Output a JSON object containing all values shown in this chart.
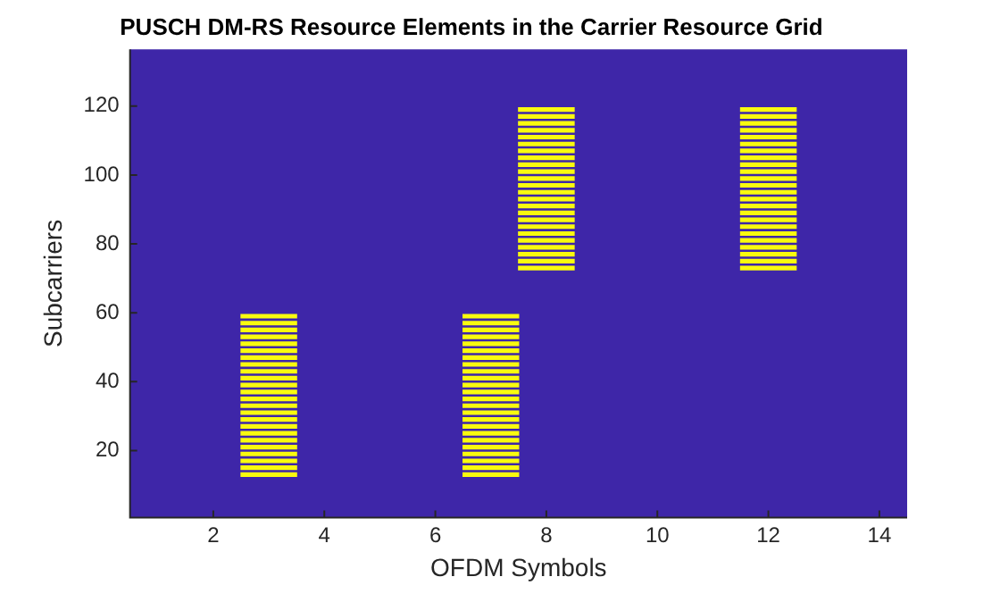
{
  "chart_data": {
    "type": "bar",
    "orientation": "horizontal",
    "title": "PUSCH DM-RS Resource Elements in the Carrier Resource Grid",
    "xlabel": "OFDM Symbols",
    "ylabel": "Subcarriers",
    "grid": false,
    "legend": false,
    "xlim": [
      0.5,
      14.5
    ],
    "xticks": [
      2,
      4,
      6,
      8,
      10,
      12,
      14
    ],
    "categories": [
      null,
      null,
      null,
      null,
      null,
      null,
      null,
      null,
      null,
      null,
      null,
      null,
      null,
      null,
      null,
      null,
      "120",
      null,
      null,
      null,
      null,
      null,
      null,
      null,
      null,
      null,
      null,
      null,
      null,
      null,
      null,
      null,
      null,
      null,
      null,
      null,
      "100",
      null,
      null,
      null,
      null,
      null,
      null,
      null,
      null,
      null,
      null,
      null,
      null,
      null,
      null,
      null,
      null,
      null,
      null,
      null,
      "80",
      null,
      null,
      null,
      null,
      null,
      null,
      null,
      null,
      null,
      null,
      null,
      null,
      null,
      null,
      null,
      null,
      null,
      null,
      null,
      "60",
      null,
      null,
      null,
      null,
      null,
      null,
      null,
      null,
      null,
      null,
      null,
      null,
      null,
      null,
      null,
      null,
      null,
      null,
      null,
      "40",
      null,
      null,
      null,
      null,
      null,
      null,
      null,
      null,
      null,
      null,
      null,
      null,
      null,
      null,
      null,
      null,
      null,
      null,
      null,
      "20",
      null,
      null,
      null,
      null,
      null,
      null,
      null,
      null,
      null,
      null,
      null,
      null,
      null,
      null,
      null,
      null,
      null,
      null,
      null
    ],
    "bands": [
      {
        "axis": "x",
        "from": 0.5,
        "to": 14.5,
        "color": "#3e26a8"
      }
    ],
    "series": [
      {
        "color": "#f9fb0e",
        "values": [
          null,
          null,
          null,
          null,
          null,
          null,
          null,
          null,
          null,
          null,
          null,
          null,
          null,
          null,
          null,
          null,
          null,
          null,
          null,
          null,
          null,
          null,
          null,
          null,
          null,
          null,
          null,
          null,
          null,
          null,
          null,
          null,
          null,
          null,
          null,
          null,
          null,
          null,
          null,
          null,
          null,
          null,
          null,
          null,
          null,
          null,
          null,
          null,
          null,
          null,
          null,
          null,
          null,
          null,
          null,
          null,
          null,
          null,
          null,
          null,
          null,
          null,
          null,
          null,
          null,
          null,
          null,
          null,
          null,
          null,
          null,
          null,
          null,
          null,
          null,
          null,
          null,
          1,
          null,
          1,
          null,
          1,
          null,
          1,
          null,
          1,
          null,
          1,
          null,
          1,
          null,
          1,
          null,
          1,
          null,
          1,
          null,
          1,
          null,
          1,
          null,
          1,
          null,
          1,
          null,
          1,
          null,
          1,
          null,
          1,
          null,
          1,
          null,
          1,
          null,
          1,
          null,
          1,
          null,
          1,
          null,
          1,
          null,
          1,
          null,
          null,
          null,
          null,
          null,
          null,
          null,
          null,
          null,
          null,
          null,
          null
        ],
        "base": [
          null,
          null,
          null,
          null,
          null,
          null,
          null,
          null,
          null,
          null,
          null,
          null,
          null,
          null,
          null,
          null,
          null,
          null,
          null,
          null,
          null,
          null,
          null,
          null,
          null,
          null,
          null,
          null,
          null,
          null,
          null,
          null,
          null,
          null,
          null,
          null,
          null,
          null,
          null,
          null,
          null,
          null,
          null,
          null,
          null,
          null,
          null,
          null,
          null,
          null,
          null,
          null,
          null,
          null,
          null,
          null,
          null,
          null,
          null,
          null,
          null,
          null,
          null,
          null,
          null,
          null,
          null,
          null,
          null,
          null,
          null,
          null,
          null,
          null,
          null,
          null,
          null,
          2.5,
          null,
          2.5,
          null,
          2.5,
          null,
          2.5,
          null,
          2.5,
          null,
          2.5,
          null,
          2.5,
          null,
          2.5,
          null,
          2.5,
          null,
          2.5,
          null,
          2.5,
          null,
          2.5,
          null,
          2.5,
          null,
          2.5,
          null,
          2.5,
          null,
          2.5,
          null,
          2.5,
          null,
          2.5,
          null,
          2.5,
          null,
          2.5,
          null,
          2.5,
          null,
          2.5,
          null,
          2.5,
          null,
          2.5,
          null,
          null,
          null,
          null,
          null,
          null,
          null,
          null,
          null,
          null,
          null,
          null
        ]
      },
      {
        "color": "#f9fb0e",
        "values": [
          null,
          null,
          null,
          null,
          null,
          null,
          null,
          null,
          null,
          null,
          null,
          null,
          null,
          null,
          null,
          null,
          null,
          null,
          null,
          null,
          null,
          null,
          null,
          null,
          null,
          null,
          null,
          null,
          null,
          null,
          null,
          null,
          null,
          null,
          null,
          null,
          null,
          null,
          null,
          null,
          null,
          null,
          null,
          null,
          null,
          null,
          null,
          null,
          null,
          null,
          null,
          null,
          null,
          null,
          null,
          null,
          null,
          null,
          null,
          null,
          null,
          null,
          null,
          null,
          null,
          null,
          null,
          null,
          null,
          null,
          null,
          null,
          null,
          null,
          null,
          null,
          null,
          1,
          null,
          1,
          null,
          1,
          null,
          1,
          null,
          1,
          null,
          1,
          null,
          1,
          null,
          1,
          null,
          1,
          null,
          1,
          null,
          1,
          null,
          1,
          null,
          1,
          null,
          1,
          null,
          1,
          null,
          1,
          null,
          1,
          null,
          1,
          null,
          1,
          null,
          1,
          null,
          1,
          null,
          1,
          null,
          1,
          null,
          1,
          null,
          null,
          null,
          null,
          null,
          null,
          null,
          null,
          null,
          null,
          null,
          null
        ],
        "base": [
          null,
          null,
          null,
          null,
          null,
          null,
          null,
          null,
          null,
          null,
          null,
          null,
          null,
          null,
          null,
          null,
          null,
          null,
          null,
          null,
          null,
          null,
          null,
          null,
          null,
          null,
          null,
          null,
          null,
          null,
          null,
          null,
          null,
          null,
          null,
          null,
          null,
          null,
          null,
          null,
          null,
          null,
          null,
          null,
          null,
          null,
          null,
          null,
          null,
          null,
          null,
          null,
          null,
          null,
          null,
          null,
          null,
          null,
          null,
          null,
          null,
          null,
          null,
          null,
          null,
          null,
          null,
          null,
          null,
          null,
          null,
          null,
          null,
          null,
          null,
          null,
          null,
          6.5,
          null,
          6.5,
          null,
          6.5,
          null,
          6.5,
          null,
          6.5,
          null,
          6.5,
          null,
          6.5,
          null,
          6.5,
          null,
          6.5,
          null,
          6.5,
          null,
          6.5,
          null,
          6.5,
          null,
          6.5,
          null,
          6.5,
          null,
          6.5,
          null,
          6.5,
          null,
          6.5,
          null,
          6.5,
          null,
          6.5,
          null,
          6.5,
          null,
          6.5,
          null,
          6.5,
          null,
          6.5,
          null,
          6.5,
          null,
          null,
          null,
          null,
          null,
          null,
          null,
          null,
          null,
          null,
          null,
          null
        ]
      },
      {
        "color": "#f9fb0e",
        "values": [
          null,
          null,
          null,
          null,
          null,
          null,
          null,
          null,
          null,
          null,
          null,
          null,
          null,
          null,
          null,
          null,
          null,
          1,
          null,
          1,
          null,
          1,
          null,
          1,
          null,
          1,
          null,
          1,
          null,
          1,
          null,
          1,
          null,
          1,
          null,
          1,
          null,
          1,
          null,
          1,
          null,
          1,
          null,
          1,
          null,
          1,
          null,
          1,
          null,
          1,
          null,
          1,
          null,
          1,
          null,
          1,
          null,
          1,
          null,
          1,
          null,
          1,
          null,
          1,
          null,
          null,
          null,
          null,
          null,
          null,
          null,
          null,
          null,
          null,
          null,
          null,
          null,
          null,
          null,
          null,
          null,
          null,
          null,
          null,
          null,
          null,
          null,
          null,
          null,
          null,
          null,
          null,
          null,
          null,
          null,
          null,
          null,
          null,
          null,
          null,
          null,
          null,
          null,
          null,
          null,
          null,
          null,
          null,
          null,
          null,
          null,
          null,
          null,
          null,
          null,
          null,
          null,
          null,
          null,
          null,
          null,
          null,
          null,
          null,
          null,
          null,
          null,
          null,
          null,
          null,
          null,
          null,
          null,
          null,
          null,
          null
        ],
        "base": [
          null,
          null,
          null,
          null,
          null,
          null,
          null,
          null,
          null,
          null,
          null,
          null,
          null,
          null,
          null,
          null,
          null,
          7.5,
          null,
          7.5,
          null,
          7.5,
          null,
          7.5,
          null,
          7.5,
          null,
          7.5,
          null,
          7.5,
          null,
          7.5,
          null,
          7.5,
          null,
          7.5,
          null,
          7.5,
          null,
          7.5,
          null,
          7.5,
          null,
          7.5,
          null,
          7.5,
          null,
          7.5,
          null,
          7.5,
          null,
          7.5,
          null,
          7.5,
          null,
          7.5,
          null,
          7.5,
          null,
          7.5,
          null,
          7.5,
          null,
          7.5,
          null,
          null,
          null,
          null,
          null,
          null,
          null,
          null,
          null,
          null,
          null,
          null,
          null,
          null,
          null,
          null,
          null,
          null,
          null,
          null,
          null,
          null,
          null,
          null,
          null,
          null,
          null,
          null,
          null,
          null,
          null,
          null,
          null,
          null,
          null,
          null,
          null,
          null,
          null,
          null,
          null,
          null,
          null,
          null,
          null,
          null,
          null,
          null,
          null,
          null,
          null,
          null,
          null,
          null,
          null,
          null,
          null,
          null,
          null,
          null,
          null,
          null,
          null,
          null,
          null,
          null,
          null,
          null,
          null,
          null,
          null,
          null
        ]
      },
      {
        "color": "#f9fb0e",
        "values": [
          null,
          null,
          null,
          null,
          null,
          null,
          null,
          null,
          null,
          null,
          null,
          null,
          null,
          null,
          null,
          null,
          null,
          1,
          null,
          1,
          null,
          1,
          null,
          1,
          null,
          1,
          null,
          1,
          null,
          1,
          null,
          1,
          null,
          1,
          null,
          1,
          null,
          1,
          null,
          1,
          null,
          1,
          null,
          1,
          null,
          1,
          null,
          1,
          null,
          1,
          null,
          1,
          null,
          1,
          null,
          1,
          null,
          1,
          null,
          1,
          null,
          1,
          null,
          1,
          null,
          null,
          null,
          null,
          null,
          null,
          null,
          null,
          null,
          null,
          null,
          null,
          null,
          null,
          null,
          null,
          null,
          null,
          null,
          null,
          null,
          null,
          null,
          null,
          null,
          null,
          null,
          null,
          null,
          null,
          null,
          null,
          null,
          null,
          null,
          null,
          null,
          null,
          null,
          null,
          null,
          null,
          null,
          null,
          null,
          null,
          null,
          null,
          null,
          null,
          null,
          null,
          null,
          null,
          null,
          null,
          null,
          null,
          null,
          null,
          null,
          null,
          null,
          null,
          null,
          null,
          null,
          null,
          null,
          null,
          null,
          null
        ],
        "base": [
          null,
          null,
          null,
          null,
          null,
          null,
          null,
          null,
          null,
          null,
          null,
          null,
          null,
          null,
          null,
          null,
          null,
          11.5,
          null,
          11.5,
          null,
          11.5,
          null,
          11.5,
          null,
          11.5,
          null,
          11.5,
          null,
          11.5,
          null,
          11.5,
          null,
          11.5,
          null,
          11.5,
          null,
          11.5,
          null,
          11.5,
          null,
          11.5,
          null,
          11.5,
          null,
          11.5,
          null,
          11.5,
          null,
          11.5,
          null,
          11.5,
          null,
          11.5,
          null,
          11.5,
          null,
          11.5,
          null,
          11.5,
          null,
          11.5,
          null,
          11.5,
          null,
          null,
          null,
          null,
          null,
          null,
          null,
          null,
          null,
          null,
          null,
          null,
          null,
          null,
          null,
          null,
          null,
          null,
          null,
          null,
          null,
          null,
          null,
          null,
          null,
          null,
          null,
          null,
          null,
          null,
          null,
          null,
          null,
          null,
          null,
          null,
          null,
          null,
          null,
          null,
          null,
          null,
          null,
          null,
          null,
          null,
          null,
          null,
          null,
          null,
          null,
          null,
          null,
          null,
          null,
          null,
          null,
          null,
          null,
          null,
          null,
          null,
          null,
          null,
          null,
          null,
          null,
          null,
          null,
          null,
          null,
          null
        ]
      }
    ]
  }
}
